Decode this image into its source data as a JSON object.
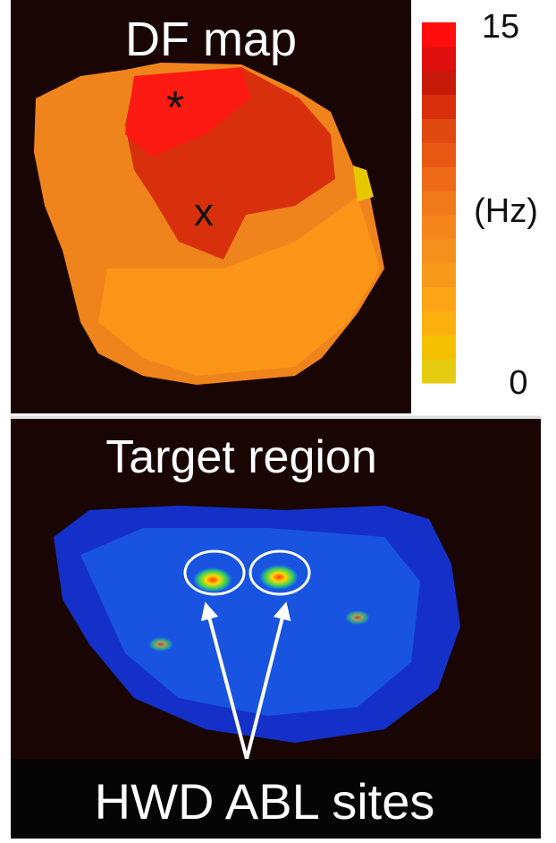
{
  "top_panel": {
    "title": "DF map",
    "markers": [
      "*",
      "x"
    ],
    "colorbar": {
      "max": 15,
      "min": 0,
      "unit": "(Hz)"
    }
  },
  "bottom_panel": {
    "title": "Target region",
    "caption": "HWD ABL sites"
  }
}
